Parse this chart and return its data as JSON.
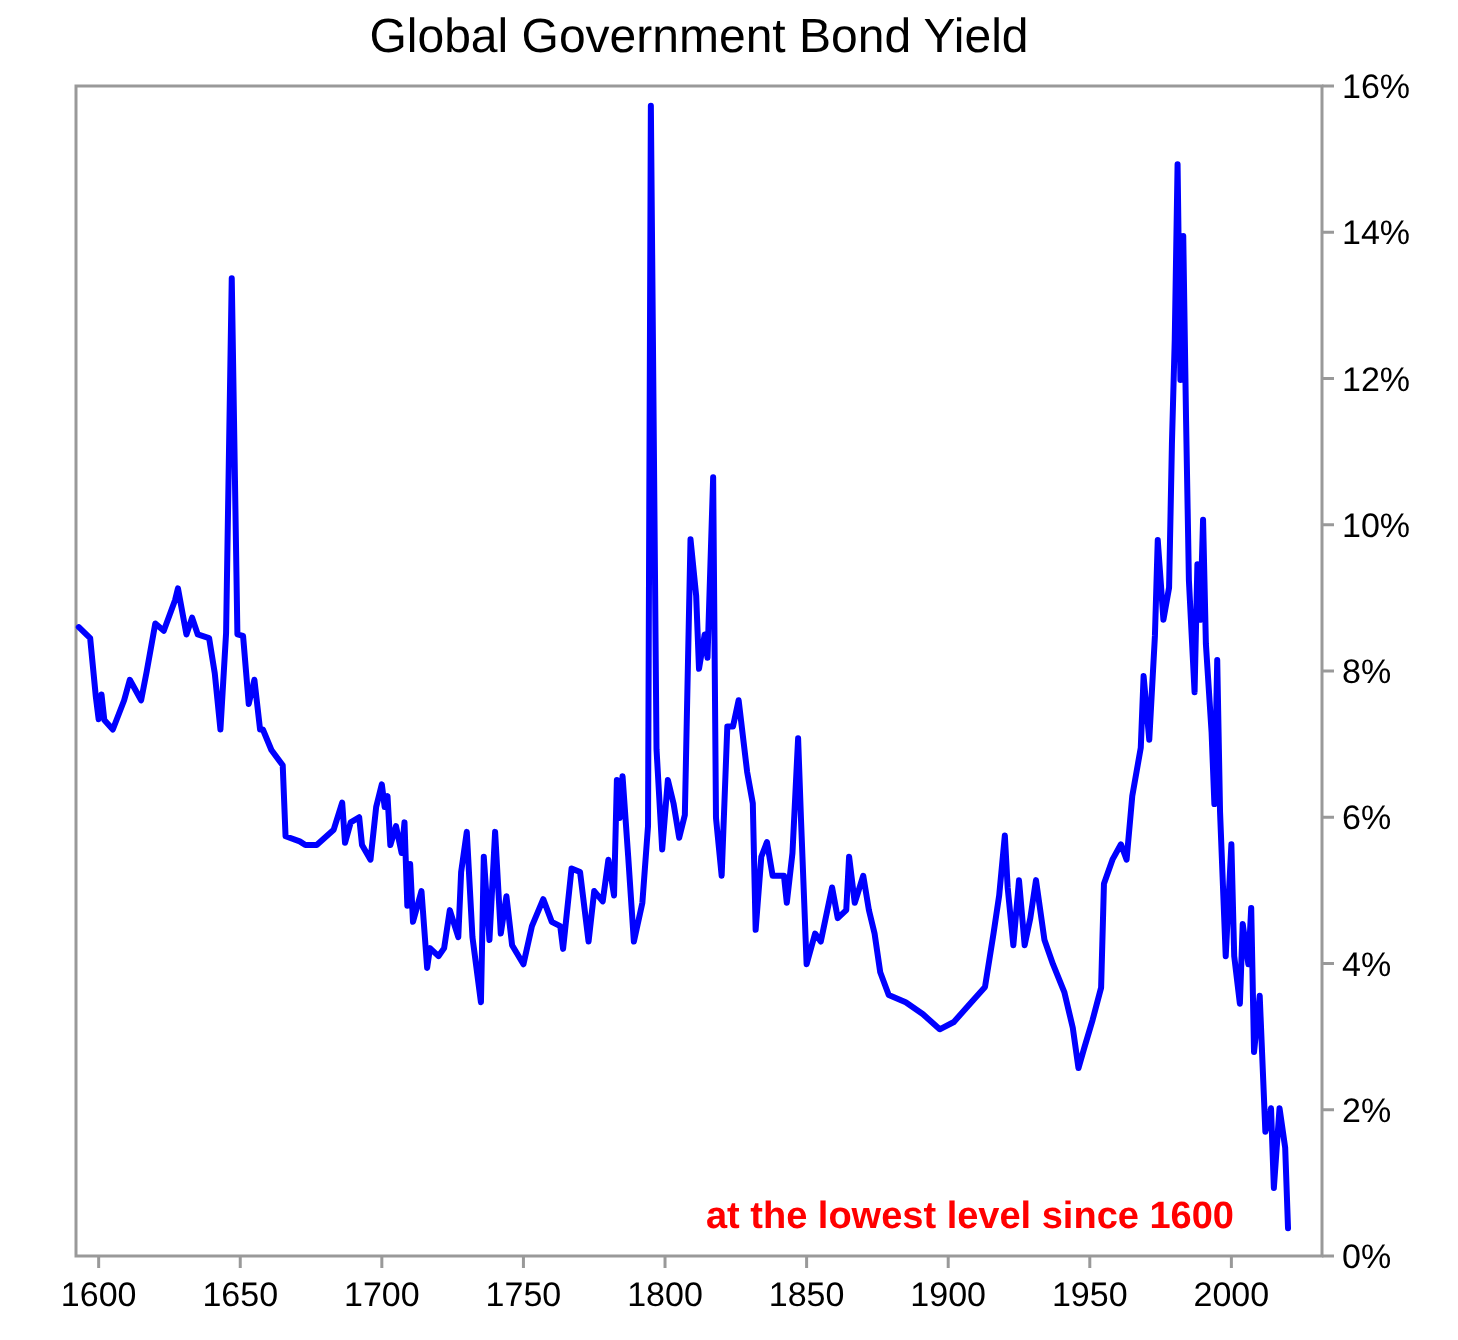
{
  "chart_data": {
    "type": "line",
    "title": "Global Government Bond Yield",
    "xlim": [
      1592,
      2032
    ],
    "xticks": [
      1600,
      1650,
      1700,
      1750,
      1800,
      1850,
      1900,
      1950,
      2000
    ],
    "ylim": [
      0,
      16
    ],
    "yticks": [
      {
        "value": 0,
        "label": "0%"
      },
      {
        "value": 2,
        "label": "2%"
      },
      {
        "value": 4,
        "label": "4%"
      },
      {
        "value": 6,
        "label": "6%"
      },
      {
        "value": 8,
        "label": "8%"
      },
      {
        "value": 10,
        "label": "10%"
      },
      {
        "value": 12,
        "label": "12%"
      },
      {
        "value": 14,
        "label": "14%"
      },
      {
        "value": 16,
        "label": "16%"
      }
    ],
    "grid": false,
    "line_style": "solid",
    "annotations": [
      "at the lowest level since 1600"
    ],
    "series": [
      {
        "color": "#0000ff",
        "x": [
          1593,
          1597,
          1599,
          1600,
          1601,
          1602,
          1605,
          1609,
          1611,
          1615,
          1617,
          1620,
          1623,
          1627,
          1628,
          1631,
          1633,
          1635,
          1639,
          1641,
          1643,
          1645,
          1647,
          1649,
          1651,
          1653,
          1655,
          1657,
          1658,
          1661,
          1665,
          1666,
          1671,
          1673,
          1677,
          1683,
          1686,
          1687,
          1689,
          1692,
          1693,
          1696,
          1698,
          1700,
          1701,
          1702,
          1703,
          1705,
          1707,
          1708,
          1709,
          1710,
          1711,
          1714,
          1716,
          1717,
          1720,
          1722,
          1724,
          1727,
          1728,
          1730,
          1732,
          1735,
          1736,
          1738,
          1740,
          1742,
          1744,
          1746,
          1750,
          1753,
          1757,
          1760,
          1763,
          1764,
          1767,
          1770,
          1773,
          1775,
          1778,
          1780,
          1782,
          1783,
          1784,
          1785,
          1787,
          1789,
          1792,
          1794,
          1795,
          1797,
          1799,
          1801,
          1803,
          1805,
          1807,
          1809,
          1811,
          1812,
          1814,
          1815,
          1817,
          1818,
          1820,
          1822,
          1824,
          1826,
          1829,
          1831,
          1832,
          1834,
          1836,
          1838,
          1842,
          1843,
          1845,
          1847,
          1848,
          1850,
          1853,
          1855,
          1859,
          1861,
          1864,
          1865,
          1867,
          1870,
          1872,
          1874,
          1876,
          1879,
          1885,
          1891,
          1897,
          1902,
          1907,
          1913,
          1916,
          1918,
          1920,
          1921,
          1923,
          1925,
          1927,
          1929,
          1931,
          1934,
          1937,
          1941,
          1944,
          1946,
          1948,
          1951,
          1954,
          1955,
          1958,
          1961,
          1963,
          1965,
          1968,
          1969,
          1971,
          1973,
          1974,
          1976,
          1978,
          1979,
          1980,
          1981,
          1982,
          1983,
          1984,
          1985,
          1987,
          1988,
          1989,
          1990,
          1991,
          1993,
          1994,
          1995,
          1996,
          1998,
          2000,
          2001,
          2003,
          2004,
          2006,
          2007,
          2008,
          2010,
          2012,
          2014,
          2015,
          2017,
          2019,
          2020
        ],
        "values": [
          8.6,
          8.45,
          7.65,
          7.34,
          7.68,
          7.33,
          7.2,
          7.6,
          7.88,
          7.6,
          8.0,
          8.65,
          8.55,
          8.97,
          9.13,
          8.5,
          8.73,
          8.5,
          8.45,
          7.97,
          7.2,
          8.52,
          13.37,
          8.5,
          8.48,
          7.55,
          7.88,
          7.2,
          7.2,
          6.92,
          6.71,
          5.74,
          5.67,
          5.62,
          5.62,
          5.83,
          6.2,
          5.65,
          5.93,
          6.0,
          5.62,
          5.42,
          6.14,
          6.45,
          6.14,
          6.29,
          5.62,
          5.88,
          5.51,
          5.93,
          4.79,
          5.36,
          4.57,
          4.99,
          3.94,
          4.21,
          4.1,
          4.21,
          4.73,
          4.36,
          5.25,
          5.8,
          4.36,
          3.47,
          5.46,
          4.32,
          5.8,
          4.41,
          4.92,
          4.25,
          3.99,
          4.51,
          4.88,
          4.57,
          4.51,
          4.2,
          5.3,
          5.25,
          4.3,
          4.99,
          4.85,
          5.42,
          4.93,
          6.51,
          5.99,
          6.56,
          5.46,
          4.3,
          4.83,
          5.88,
          15.73,
          6.93,
          5.56,
          6.51,
          6.19,
          5.72,
          6.03,
          9.8,
          9.03,
          8.03,
          8.5,
          8.18,
          10.65,
          5.99,
          5.2,
          7.24,
          7.24,
          7.6,
          6.62,
          6.19,
          4.46,
          5.46,
          5.66,
          5.2,
          5.2,
          4.83,
          5.51,
          7.08,
          5.99,
          3.99,
          4.41,
          4.3,
          5.04,
          4.62,
          4.73,
          5.46,
          4.83,
          5.2,
          4.73,
          4.41,
          3.88,
          3.57,
          3.47,
          3.31,
          3.1,
          3.2,
          3.42,
          3.68,
          4.41,
          4.93,
          5.75,
          5.04,
          4.25,
          5.14,
          4.25,
          4.62,
          5.14,
          4.32,
          3.99,
          3.61,
          3.12,
          2.57,
          2.84,
          3.23,
          3.67,
          5.09,
          5.42,
          5.63,
          5.42,
          6.29,
          6.95,
          7.93,
          7.06,
          8.48,
          9.79,
          8.7,
          9.14,
          11.1,
          12.53,
          14.93,
          11.98,
          13.95,
          11.43,
          9.24,
          7.71,
          9.46,
          8.7,
          10.07,
          8.37,
          7.17,
          6.18,
          8.15,
          6.07,
          4.1,
          5.63,
          4.1,
          3.45,
          4.54,
          3.99,
          4.76,
          2.79,
          3.56,
          1.7,
          2.02,
          0.93,
          2.02,
          1.48,
          0.38
        ]
      }
    ]
  }
}
